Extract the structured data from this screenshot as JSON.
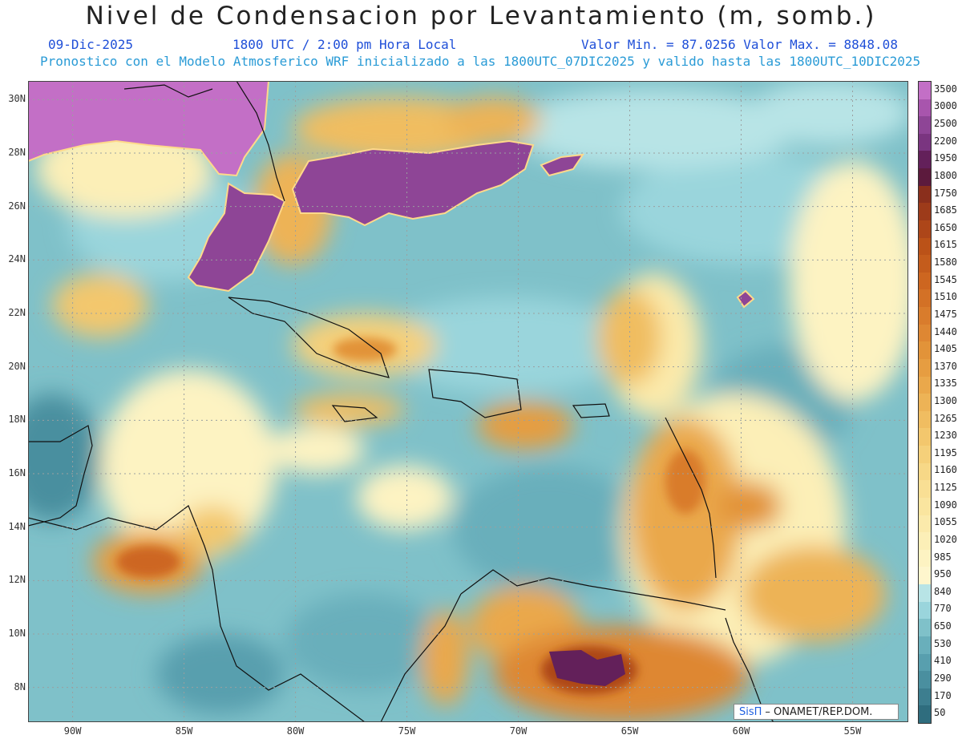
{
  "header": {
    "title": "Nivel de Condensacion por Levantamiento (m, somb.)",
    "date": "09-Dic-2025",
    "time": "1800 UTC / 2:00 pm Hora Local",
    "min_max": "Valor Min. = 87.0256  Valor Max. = 8848.08",
    "model_line": "Pronostico con el Modelo Atmosferico WRF inicializado a las 1800UTC_07DIC2025 y valido hasta las  1800UTC_10DIC2025"
  },
  "map": {
    "lat_ticks": [
      "30N",
      "28N",
      "26N",
      "24N",
      "22N",
      "20N",
      "18N",
      "16N",
      "14N",
      "12N",
      "10N",
      "8N"
    ],
    "lon_ticks": [
      "90W",
      "85W",
      "80W",
      "75W",
      "70W",
      "65W",
      "60W",
      "55W"
    ],
    "lon_range": [
      -92.0,
      -52.5
    ],
    "lat_range": [
      6.7,
      30.7
    ],
    "lat_tick_values": [
      30,
      28,
      26,
      24,
      22,
      20,
      18,
      16,
      14,
      12,
      10,
      8
    ],
    "lon_tick_values": [
      -90,
      -85,
      -80,
      -75,
      -70,
      -65,
      -60,
      -55
    ]
  },
  "colorbar": {
    "labels": [
      "3500",
      "3000",
      "2500",
      "2200",
      "1950",
      "1800",
      "1750",
      "1685",
      "1650",
      "1615",
      "1580",
      "1545",
      "1510",
      "1475",
      "1440",
      "1405",
      "1370",
      "1335",
      "1300",
      "1265",
      "1230",
      "1195",
      "1160",
      "1125",
      "1090",
      "1055",
      "1020",
      "985",
      "950",
      "840",
      "770",
      "650",
      "530",
      "410",
      "290",
      "170",
      "50"
    ],
    "colors": [
      "#c36fc6",
      "#a855ad",
      "#8e4596",
      "#7a3580",
      "#63205a",
      "#5c1a3d",
      "#8a2f1c",
      "#9d3b1a",
      "#ad4619",
      "#bb5218",
      "#c45c1c",
      "#cd6620",
      "#d37126",
      "#d97c2c",
      "#de8733",
      "#e29339",
      "#e69d41",
      "#eaa84b",
      "#edb356",
      "#f0bd61",
      "#f3c76d",
      "#f5d07a",
      "#f7d887",
      "#f9df94",
      "#fae59f",
      "#fbeaab",
      "#fcefb7",
      "#fdf3c2",
      "#fef6cd",
      "#b8e4e6",
      "#9ad5dc",
      "#7fc1c9",
      "#69afbb",
      "#589fae",
      "#4a8f9f",
      "#3d7e8f",
      "#2f6d7e"
    ]
  },
  "credit": {
    "sis": "SisΠ",
    "text": "– ONAMET/REP.DOM."
  },
  "colors": {
    "ocean_base": "#7fc1c9",
    "grid": "#9aa0a0",
    "coast": "#111111"
  }
}
